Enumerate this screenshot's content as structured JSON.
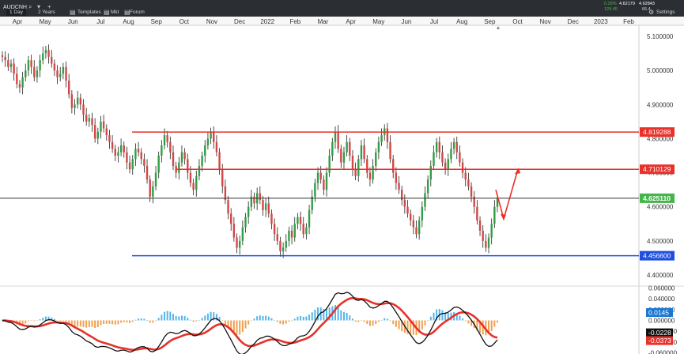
{
  "toolbar": {
    "symbol": "AUDCNH",
    "timeframes": [
      "1 Day",
      "2 Years"
    ],
    "templates_label": "Templates",
    "mkt_label": "Mkt",
    "forum_label": "Forum",
    "change_pct": "0.28%",
    "change_abs": "129.45",
    "bid": "4.62179",
    "ask": "4.62843",
    "spread": "66.4",
    "settings_label": "Settings",
    "colors": {
      "up": "#43b649",
      "bg": "#2b2f33"
    }
  },
  "chart_data": [
    {
      "type": "candlestick",
      "title": "",
      "x_labels": [
        "Apr",
        "May",
        "Jun",
        "Jul",
        "Aug",
        "Sep",
        "Oct",
        "Nov",
        "Dec",
        "2022",
        "Feb",
        "Mar",
        "Apr",
        "May",
        "Jun",
        "Jul",
        "Aug",
        "Sep",
        "Oct",
        "Nov",
        "Dec",
        "2023",
        "Feb"
      ],
      "y_ticks": [
        "5.100000",
        "5.000000",
        "4.900000",
        "4.800000",
        "4.700000",
        "4.600000",
        "4.500000",
        "4.400000"
      ],
      "ylim": [
        4.37,
        5.13
      ],
      "grid": false,
      "close_series": [
        5.04,
        5.03,
        5.01,
        5.02,
        4.99,
        4.96,
        4.95,
        4.98,
        5.0,
        5.03,
        5.01,
        4.98,
        5.0,
        5.03,
        5.05,
        5.06,
        5.04,
        5.02,
        5.0,
        4.98,
        4.99,
        5.01,
        4.97,
        4.93,
        4.89,
        4.9,
        4.92,
        4.9,
        4.87,
        4.85,
        4.86,
        4.84,
        4.8,
        4.82,
        4.85,
        4.83,
        4.81,
        4.79,
        4.77,
        4.75,
        4.76,
        4.78,
        4.76,
        4.73,
        4.71,
        4.74,
        4.77,
        4.76,
        4.74,
        4.72,
        4.68,
        4.63,
        4.66,
        4.7,
        4.75,
        4.78,
        4.81,
        4.79,
        4.76,
        4.72,
        4.7,
        4.73,
        4.76,
        4.74,
        4.7,
        4.67,
        4.65,
        4.69,
        4.72,
        4.75,
        4.78,
        4.8,
        4.82,
        4.79,
        4.76,
        4.71,
        4.66,
        4.62,
        4.58,
        4.55,
        4.51,
        4.48,
        4.5,
        4.54,
        4.57,
        4.6,
        4.63,
        4.61,
        4.64,
        4.62,
        4.59,
        4.61,
        4.58,
        4.55,
        4.52,
        4.5,
        4.47,
        4.48,
        4.5,
        4.53,
        4.51,
        4.55,
        4.57,
        4.55,
        4.52,
        4.54,
        4.59,
        4.63,
        4.67,
        4.7,
        4.68,
        4.65,
        4.7,
        4.75,
        4.79,
        4.82,
        4.77,
        4.73,
        4.76,
        4.79,
        4.75,
        4.71,
        4.69,
        4.74,
        4.78,
        4.74,
        4.7,
        4.68,
        4.72,
        4.76,
        4.79,
        4.81,
        4.83,
        4.79,
        4.74,
        4.7,
        4.67,
        4.65,
        4.62,
        4.6,
        4.58,
        4.56,
        4.54,
        4.52,
        4.56,
        4.6,
        4.64,
        4.68,
        4.72,
        4.76,
        4.79,
        4.76,
        4.73,
        4.71,
        4.74,
        4.77,
        4.79,
        4.76,
        4.73,
        4.7,
        4.68,
        4.66,
        4.63,
        4.6,
        4.56,
        4.53,
        4.5,
        4.48,
        4.51,
        4.55,
        4.6,
        4.6251
      ],
      "horizontal_lines": [
        {
          "label": "4.819288",
          "value": 4.819288,
          "color": "#e8312a"
        },
        {
          "label": "4.710129",
          "value": 4.710129,
          "color": "#e8312a"
        },
        {
          "label": "4.625110",
          "value": 4.62511,
          "color": "#43b649"
        },
        {
          "label": "4.456600",
          "value": 4.4566,
          "color": "#1f4fe0"
        }
      ],
      "annotations": {
        "arrow_path": [
          [
            4.65,
            4.565
          ],
          [
            4.565,
            4.71
          ]
        ],
        "arrow_color": "#e8312a"
      }
    },
    {
      "type": "macd",
      "y_ticks": [
        "0.060000",
        "0.040000",
        "0.020000",
        "0.000000",
        "-0.020000",
        "-0.040000",
        "-0.060000"
      ],
      "ylim": [
        -0.062,
        0.062
      ],
      "value_labels": [
        {
          "label": "0.0145",
          "value": 0.0145,
          "color": "#1976d2"
        },
        {
          "label": "-0.0228",
          "value": -0.0228,
          "color": "#111111"
        },
        {
          "label": "-0.0373",
          "value": -0.0373,
          "color": "#e8312a"
        }
      ],
      "macd_color": "#111111",
      "signal_color": "#e8312a",
      "hist_up_color": "#56b4e9",
      "hist_down_color": "#f0a050"
    }
  ]
}
